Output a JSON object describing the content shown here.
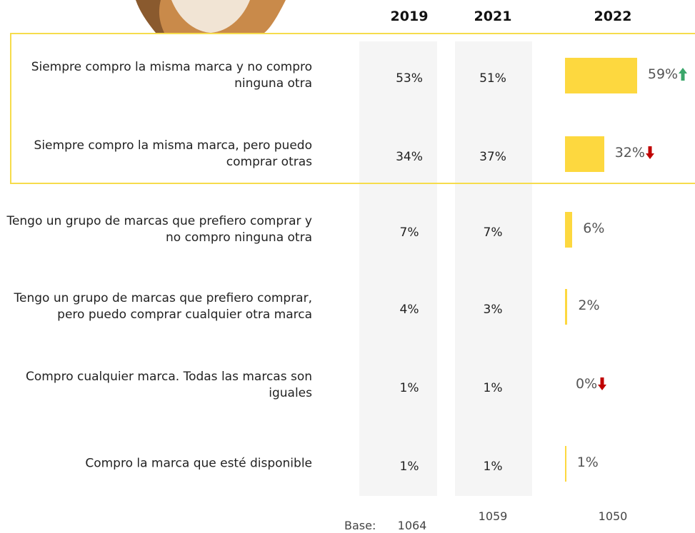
{
  "chart_data": {
    "type": "bar",
    "orientation": "horizontal",
    "categories": [
      "Siempre compro la misma marca y no compro ninguna otra",
      "Siempre compro la misma marca, pero puedo comprar otras",
      "Tengo un grupo de marcas que prefiero comprar y no compro ninguna otra",
      "Tengo un grupo de marcas que prefiero comprar, pero puedo comprar cualquier otra marca",
      "Compro cualquier marca. Todas las marcas son iguales",
      "Compro la marca que esté disponible"
    ],
    "series": [
      {
        "name": "2019",
        "values": [
          53,
          34,
          7,
          4,
          1,
          1
        ],
        "value_labels": [
          "53%",
          "34%",
          "7%",
          "4%",
          "1%",
          "1%"
        ],
        "base": 1064
      },
      {
        "name": "2021",
        "values": [
          51,
          37,
          7,
          3,
          1,
          1
        ],
        "value_labels": [
          "51%",
          "37%",
          "7%",
          "3%",
          "1%",
          "1%"
        ],
        "base": 1059
      },
      {
        "name": "2022",
        "color": "#fdd83f",
        "values": [
          59,
          32,
          6,
          2,
          0,
          1
        ],
        "value_labels": [
          "59%",
          "32%",
          "6%",
          "2%",
          "0%",
          "1%"
        ],
        "base": 1050,
        "trends": [
          "up",
          "down",
          null,
          null,
          "down",
          null
        ]
      }
    ],
    "base_label": "Base:",
    "xlim": [
      0,
      100
    ],
    "highlight_rows": [
      0,
      1
    ],
    "trend_colors": {
      "up": "#3aa66a",
      "down": "#c00000"
    }
  }
}
